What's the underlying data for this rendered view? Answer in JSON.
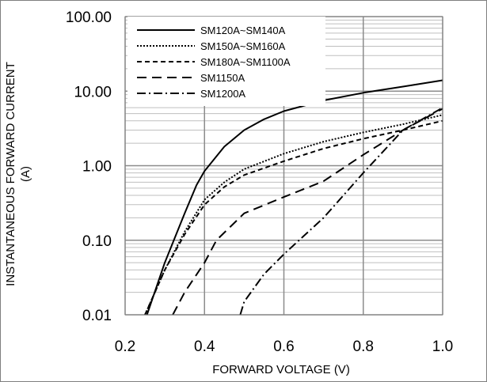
{
  "chart_data": {
    "type": "line",
    "title": "",
    "xlabel": "FORWARD VOLTAGE (V)",
    "ylabel_line1": "INSTANTANEOUS FORWARD CURRENT",
    "ylabel_line2": "(A)",
    "x_scale": "linear",
    "y_scale": "log",
    "xlim": [
      0.2,
      1.0
    ],
    "ylim": [
      0.01,
      100
    ],
    "x_ticks": [
      0.2,
      0.4,
      0.6,
      0.8,
      1.0
    ],
    "x_tick_labels": [
      "0.2",
      "0.4",
      "0.6",
      "0.8",
      "1.0"
    ],
    "y_ticks": [
      0.01,
      0.1,
      1,
      10,
      100
    ],
    "y_tick_labels": [
      "0.01",
      "0.10",
      "1.00",
      "10.00",
      "100.00"
    ],
    "grid": true,
    "minor_grid": true,
    "legend_position": "top-left",
    "series": [
      {
        "name": "SM120A~SM140A",
        "style": "solid",
        "points": [
          [
            0.255,
            0.01
          ],
          [
            0.3,
            0.05
          ],
          [
            0.35,
            0.23
          ],
          [
            0.38,
            0.55
          ],
          [
            0.4,
            0.85
          ],
          [
            0.45,
            1.8
          ],
          [
            0.5,
            3.0
          ],
          [
            0.55,
            4.2
          ],
          [
            0.6,
            5.4
          ],
          [
            0.7,
            7.5
          ],
          [
            0.8,
            9.5
          ],
          [
            0.9,
            11.5
          ],
          [
            1.0,
            14.0
          ]
        ]
      },
      {
        "name": "SM150A~SM160A",
        "style": "dotted",
        "points": [
          [
            0.25,
            0.01
          ],
          [
            0.3,
            0.04
          ],
          [
            0.35,
            0.13
          ],
          [
            0.4,
            0.35
          ],
          [
            0.45,
            0.6
          ],
          [
            0.5,
            0.9
          ],
          [
            0.6,
            1.45
          ],
          [
            0.7,
            2.1
          ],
          [
            0.8,
            2.8
          ],
          [
            0.9,
            3.6
          ],
          [
            1.0,
            4.8
          ]
        ]
      },
      {
        "name": "SM180A~SM1100A",
        "style": "dashed",
        "points": [
          [
            0.25,
            0.01
          ],
          [
            0.3,
            0.04
          ],
          [
            0.35,
            0.12
          ],
          [
            0.4,
            0.3
          ],
          [
            0.45,
            0.52
          ],
          [
            0.5,
            0.75
          ],
          [
            0.6,
            1.15
          ],
          [
            0.7,
            1.7
          ],
          [
            0.8,
            2.3
          ],
          [
            0.9,
            3.0
          ],
          [
            1.0,
            4.0
          ]
        ]
      },
      {
        "name": "SM1150A",
        "style": "long-dash",
        "points": [
          [
            0.32,
            0.01
          ],
          [
            0.35,
            0.02
          ],
          [
            0.4,
            0.05
          ],
          [
            0.43,
            0.1
          ],
          [
            0.5,
            0.23
          ],
          [
            0.6,
            0.38
          ],
          [
            0.7,
            0.62
          ],
          [
            0.8,
            1.4
          ],
          [
            0.9,
            3.0
          ],
          [
            1.0,
            5.8
          ]
        ]
      },
      {
        "name": "SM1200A",
        "style": "dash-dot",
        "points": [
          [
            0.49,
            0.01
          ],
          [
            0.5,
            0.015
          ],
          [
            0.55,
            0.035
          ],
          [
            0.6,
            0.065
          ],
          [
            0.7,
            0.2
          ],
          [
            0.8,
            0.8
          ],
          [
            0.9,
            3.0
          ],
          [
            1.0,
            6.0
          ]
        ]
      }
    ]
  }
}
